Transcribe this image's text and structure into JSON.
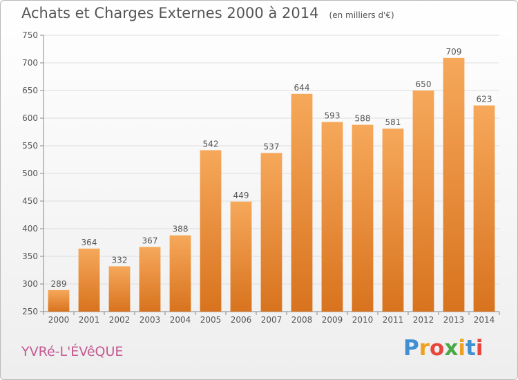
{
  "title": "Achats et Charges Externes 2000 à 2014",
  "unit": "(en milliers d'€)",
  "town": "YVRé-L'ÉVêQUE",
  "brand": {
    "letters": [
      "P",
      "r",
      "o",
      "x",
      "i",
      "t",
      "i"
    ],
    "colors": [
      "#3f8fd2",
      "#f0a020",
      "#e8453c",
      "#4aa845",
      "#f0a020",
      "#3f8fd2",
      "#e8453c"
    ]
  },
  "colors": {
    "bar_light": "#f6a85a",
    "bar_dark": "#d8731e",
    "text": "#555555",
    "grid": "#dddddd",
    "town": "#c45a92"
  },
  "chart_data": {
    "type": "bar",
    "categories": [
      "2000",
      "2001",
      "2002",
      "2003",
      "2004",
      "2005",
      "2006",
      "2007",
      "2008",
      "2009",
      "2010",
      "2011",
      "2012",
      "2013",
      "2014"
    ],
    "values": [
      289,
      364,
      332,
      367,
      388,
      542,
      449,
      537,
      644,
      593,
      588,
      581,
      650,
      709,
      623
    ],
    "yticks": [
      250,
      300,
      350,
      400,
      450,
      500,
      550,
      600,
      650,
      700,
      750
    ],
    "ylim": [
      250,
      750
    ],
    "grid": true,
    "data_labels": true
  }
}
